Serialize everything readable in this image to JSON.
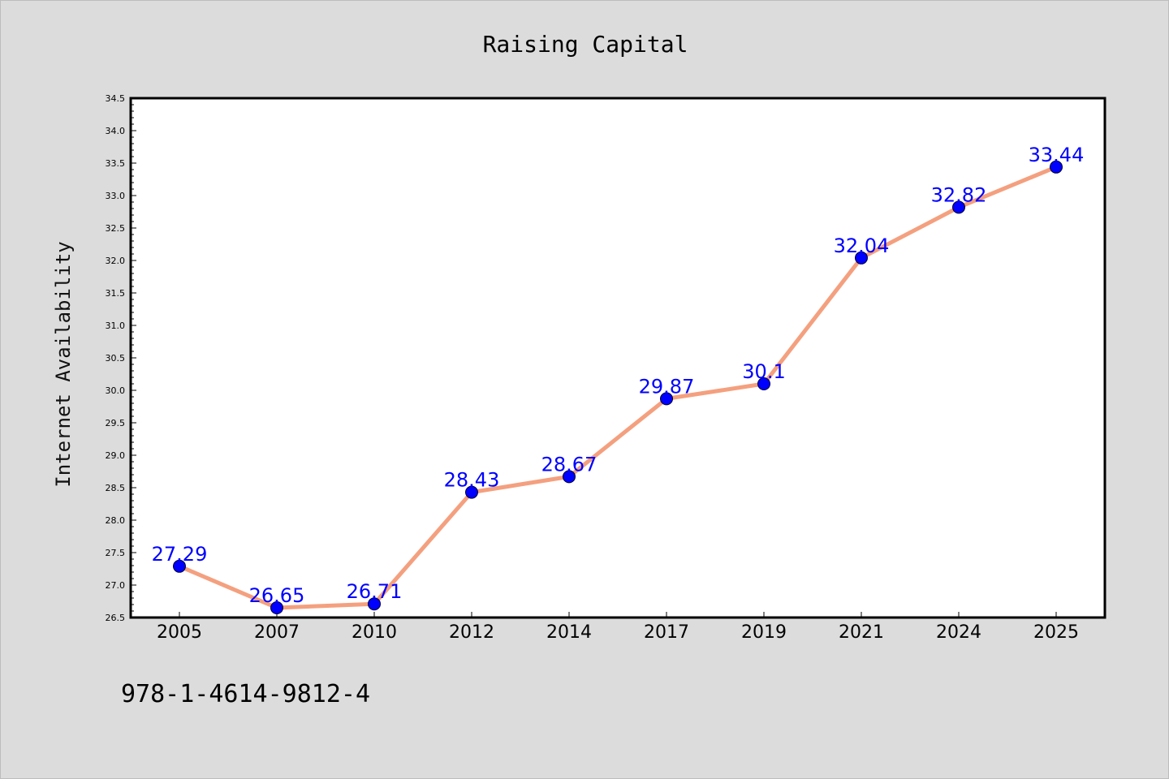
{
  "chart_data": {
    "type": "line",
    "title": "Raising Capital",
    "xlabel": "",
    "ylabel": "Internet Availability",
    "categories": [
      "2005",
      "2007",
      "2010",
      "2012",
      "2014",
      "2017",
      "2019",
      "2021",
      "2024",
      "2025"
    ],
    "values": [
      27.29,
      26.65,
      26.71,
      28.43,
      28.67,
      29.87,
      30.1,
      32.04,
      32.82,
      33.44
    ],
    "data_labels": [
      "27.29",
      "26.65",
      "26.71",
      "28.43",
      "28.67",
      "29.87",
      "30.1",
      "32.04",
      "32.82",
      "33.44"
    ],
    "ylim": [
      26.5,
      34.5
    ],
    "yticks": [
      "26.5",
      "27.0",
      "27.5",
      "28.0",
      "28.5",
      "29.0",
      "29.5",
      "30.0",
      "30.5",
      "31.0",
      "31.5",
      "32.0",
      "32.5",
      "33.0",
      "33.5",
      "34.0",
      "34.5"
    ],
    "grid": false,
    "legend": "none",
    "colors": {
      "line": "#f4a07f",
      "marker": "#0000ff",
      "data_label": "#0000ff",
      "background": "#dcdcdc",
      "plot_background": "#ffffff"
    }
  },
  "footer_text": "978-1-4614-9812-4"
}
